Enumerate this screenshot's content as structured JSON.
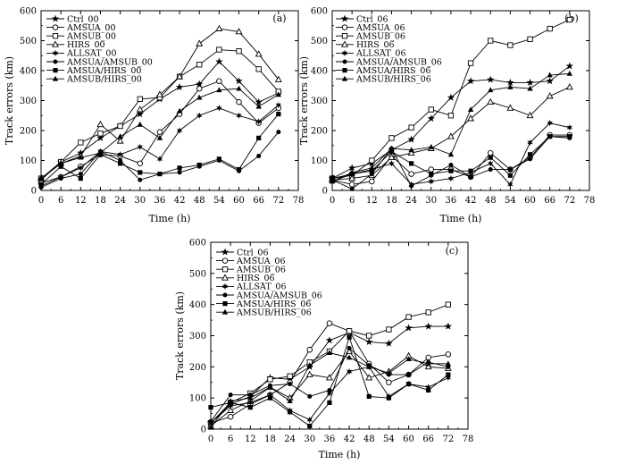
{
  "chart_data": [
    {
      "type": "line",
      "panel_label": "(a)",
      "xlabel": "Time (h)",
      "ylabel": "Track errors (km)",
      "xlim": [
        0,
        78
      ],
      "ylim": [
        0,
        600
      ],
      "xticks": [
        0,
        6,
        12,
        18,
        24,
        30,
        36,
        42,
        48,
        54,
        60,
        66,
        72,
        78
      ],
      "yticks": [
        0,
        100,
        200,
        300,
        400,
        500,
        600
      ],
      "x": [
        0,
        6,
        12,
        18,
        24,
        30,
        36,
        42,
        48,
        54,
        60,
        66,
        72
      ],
      "series": [
        {
          "name": "Ctrl_00",
          "marker": "star5",
          "values": [
            35,
            95,
            125,
            175,
            215,
            255,
            305,
            345,
            355,
            430,
            365,
            295,
            325
          ]
        },
        {
          "name": "AMSUA_00",
          "marker": "circle",
          "values": [
            25,
            45,
            80,
            120,
            115,
            90,
            195,
            255,
            340,
            365,
            295,
            225,
            275
          ]
        },
        {
          "name": "AMSUB_00",
          "marker": "square",
          "values": [
            40,
            95,
            160,
            190,
            215,
            305,
            310,
            380,
            420,
            470,
            465,
            405,
            330
          ]
        },
        {
          "name": "HIRS_00",
          "marker": "triangle",
          "values": [
            40,
            90,
            115,
            220,
            165,
            270,
            320,
            380,
            490,
            540,
            530,
            455,
            370
          ]
        },
        {
          "name": "ALLSAT_00",
          "marker": "star6",
          "values": [
            15,
            45,
            75,
            130,
            120,
            145,
            105,
            200,
            250,
            275,
            250,
            230,
            285
          ]
        },
        {
          "name": "AMSUA/AMSUB_00",
          "marker": "dot",
          "values": [
            10,
            40,
            55,
            130,
            100,
            35,
            55,
            60,
            80,
            100,
            65,
            115,
            195
          ]
        },
        {
          "name": "AMSUA/HIRS_00",
          "marker": "fsquare",
          "values": [
            20,
            80,
            40,
            120,
            90,
            60,
            55,
            75,
            85,
            105,
            70,
            175,
            255
          ]
        },
        {
          "name": "AMSUB/HIRS_00",
          "marker": "ftriangle",
          "values": [
            40,
            90,
            110,
            125,
            180,
            220,
            175,
            265,
            310,
            335,
            340,
            280,
            320
          ]
        }
      ]
    },
    {
      "type": "line",
      "panel_label": "(b)",
      "xlabel": "Time (h)",
      "ylabel": "Track errors (km)",
      "xlim": [
        0,
        78
      ],
      "ylim": [
        0,
        600
      ],
      "xticks": [
        0,
        6,
        12,
        18,
        24,
        30,
        36,
        42,
        48,
        54,
        60,
        66,
        72,
        78
      ],
      "yticks": [
        0,
        100,
        200,
        300,
        400,
        500,
        600
      ],
      "x": [
        0,
        6,
        12,
        18,
        24,
        30,
        36,
        42,
        48,
        54,
        60,
        66,
        72
      ],
      "series": [
        {
          "name": "Ctrl_06",
          "marker": "star5",
          "values": [
            40,
            75,
            90,
            135,
            170,
            240,
            310,
            365,
            370,
            360,
            360,
            365,
            415
          ]
        },
        {
          "name": "AMSUA_06",
          "marker": "circle",
          "values": [
            35,
            20,
            30,
            115,
            55,
            70,
            70,
            45,
            125,
            70,
            110,
            185,
            185
          ]
        },
        {
          "name": "AMSUB_06",
          "marker": "square",
          "values": [
            40,
            50,
            100,
            175,
            210,
            270,
            250,
            425,
            500,
            485,
            505,
            540,
            570
          ]
        },
        {
          "name": "HIRS_06",
          "marker": "triangle",
          "values": [
            35,
            40,
            50,
            110,
            125,
            140,
            180,
            240,
            295,
            275,
            250,
            315,
            345
          ]
        },
        {
          "name": "ALLSAT_06",
          "marker": "star6",
          "values": [
            30,
            55,
            70,
            90,
            20,
            30,
            40,
            60,
            90,
            20,
            160,
            225,
            210
          ]
        },
        {
          "name": "AMSUA/AMSUB_06",
          "marker": "dot",
          "values": [
            35,
            5,
            55,
            140,
            15,
            50,
            85,
            45,
            70,
            70,
            105,
            180,
            175
          ]
        },
        {
          "name": "AMSUA/HIRS_06",
          "marker": "fsquare",
          "values": [
            40,
            55,
            65,
            130,
            90,
            55,
            65,
            65,
            110,
            50,
            120,
            180,
            180
          ]
        },
        {
          "name": "AMSUB/HIRS_06",
          "marker": "ftriangle",
          "values": [
            30,
            60,
            75,
            140,
            135,
            145,
            120,
            270,
            335,
            345,
            340,
            385,
            390
          ]
        }
      ]
    },
    {
      "type": "line",
      "panel_label": "(c)",
      "xlabel": "Time (h)",
      "ylabel": "Track errors (km)",
      "xlim": [
        0,
        78
      ],
      "ylim": [
        0,
        600
      ],
      "xticks": [
        0,
        6,
        12,
        18,
        24,
        30,
        36,
        42,
        48,
        54,
        60,
        66,
        72,
        78
      ],
      "yticks": [
        0,
        100,
        200,
        300,
        400,
        500,
        600
      ],
      "x": [
        0,
        6,
        12,
        18,
        24,
        30,
        36,
        42,
        48,
        54,
        60,
        66,
        72
      ],
      "series": [
        {
          "name": "Ctrl_06",
          "marker": "star5",
          "values": [
            20,
            80,
            105,
            165,
            160,
            200,
            285,
            310,
            280,
            275,
            325,
            330,
            330
          ]
        },
        {
          "name": "AMSUA_06",
          "marker": "circle",
          "values": [
            20,
            40,
            80,
            110,
            150,
            255,
            340,
            315,
            210,
            150,
            175,
            230,
            240
          ]
        },
        {
          "name": "AMSUB_06",
          "marker": "square",
          "values": [
            20,
            85,
            115,
            160,
            170,
            215,
            250,
            315,
            300,
            320,
            360,
            375,
            400
          ]
        },
        {
          "name": "HIRS_06",
          "marker": "triangle",
          "values": [
            10,
            60,
            90,
            135,
            100,
            175,
            165,
            250,
            165,
            185,
            235,
            200,
            195
          ]
        },
        {
          "name": "ALLSAT_06",
          "marker": "star6",
          "values": [
            20,
            75,
            85,
            110,
            60,
            30,
            115,
            185,
            200,
            105,
            145,
            135,
            165
          ]
        },
        {
          "name": "AMSUA/AMSUB_06",
          "marker": "dot",
          "values": [
            25,
            110,
            110,
            140,
            145,
            105,
            125,
            260,
            205,
            175,
            175,
            215,
            200
          ]
        },
        {
          "name": "AMSUA/HIRS_06",
          "marker": "fsquare",
          "values": [
            70,
            85,
            70,
            100,
            55,
            10,
            85,
            295,
            105,
            100,
            145,
            125,
            175
          ]
        },
        {
          "name": "AMSUB/HIRS_06",
          "marker": "ftriangle",
          "values": [
            5,
            90,
            100,
            135,
            90,
            205,
            245,
            230,
            200,
            180,
            225,
            210,
            210
          ]
        }
      ]
    }
  ]
}
